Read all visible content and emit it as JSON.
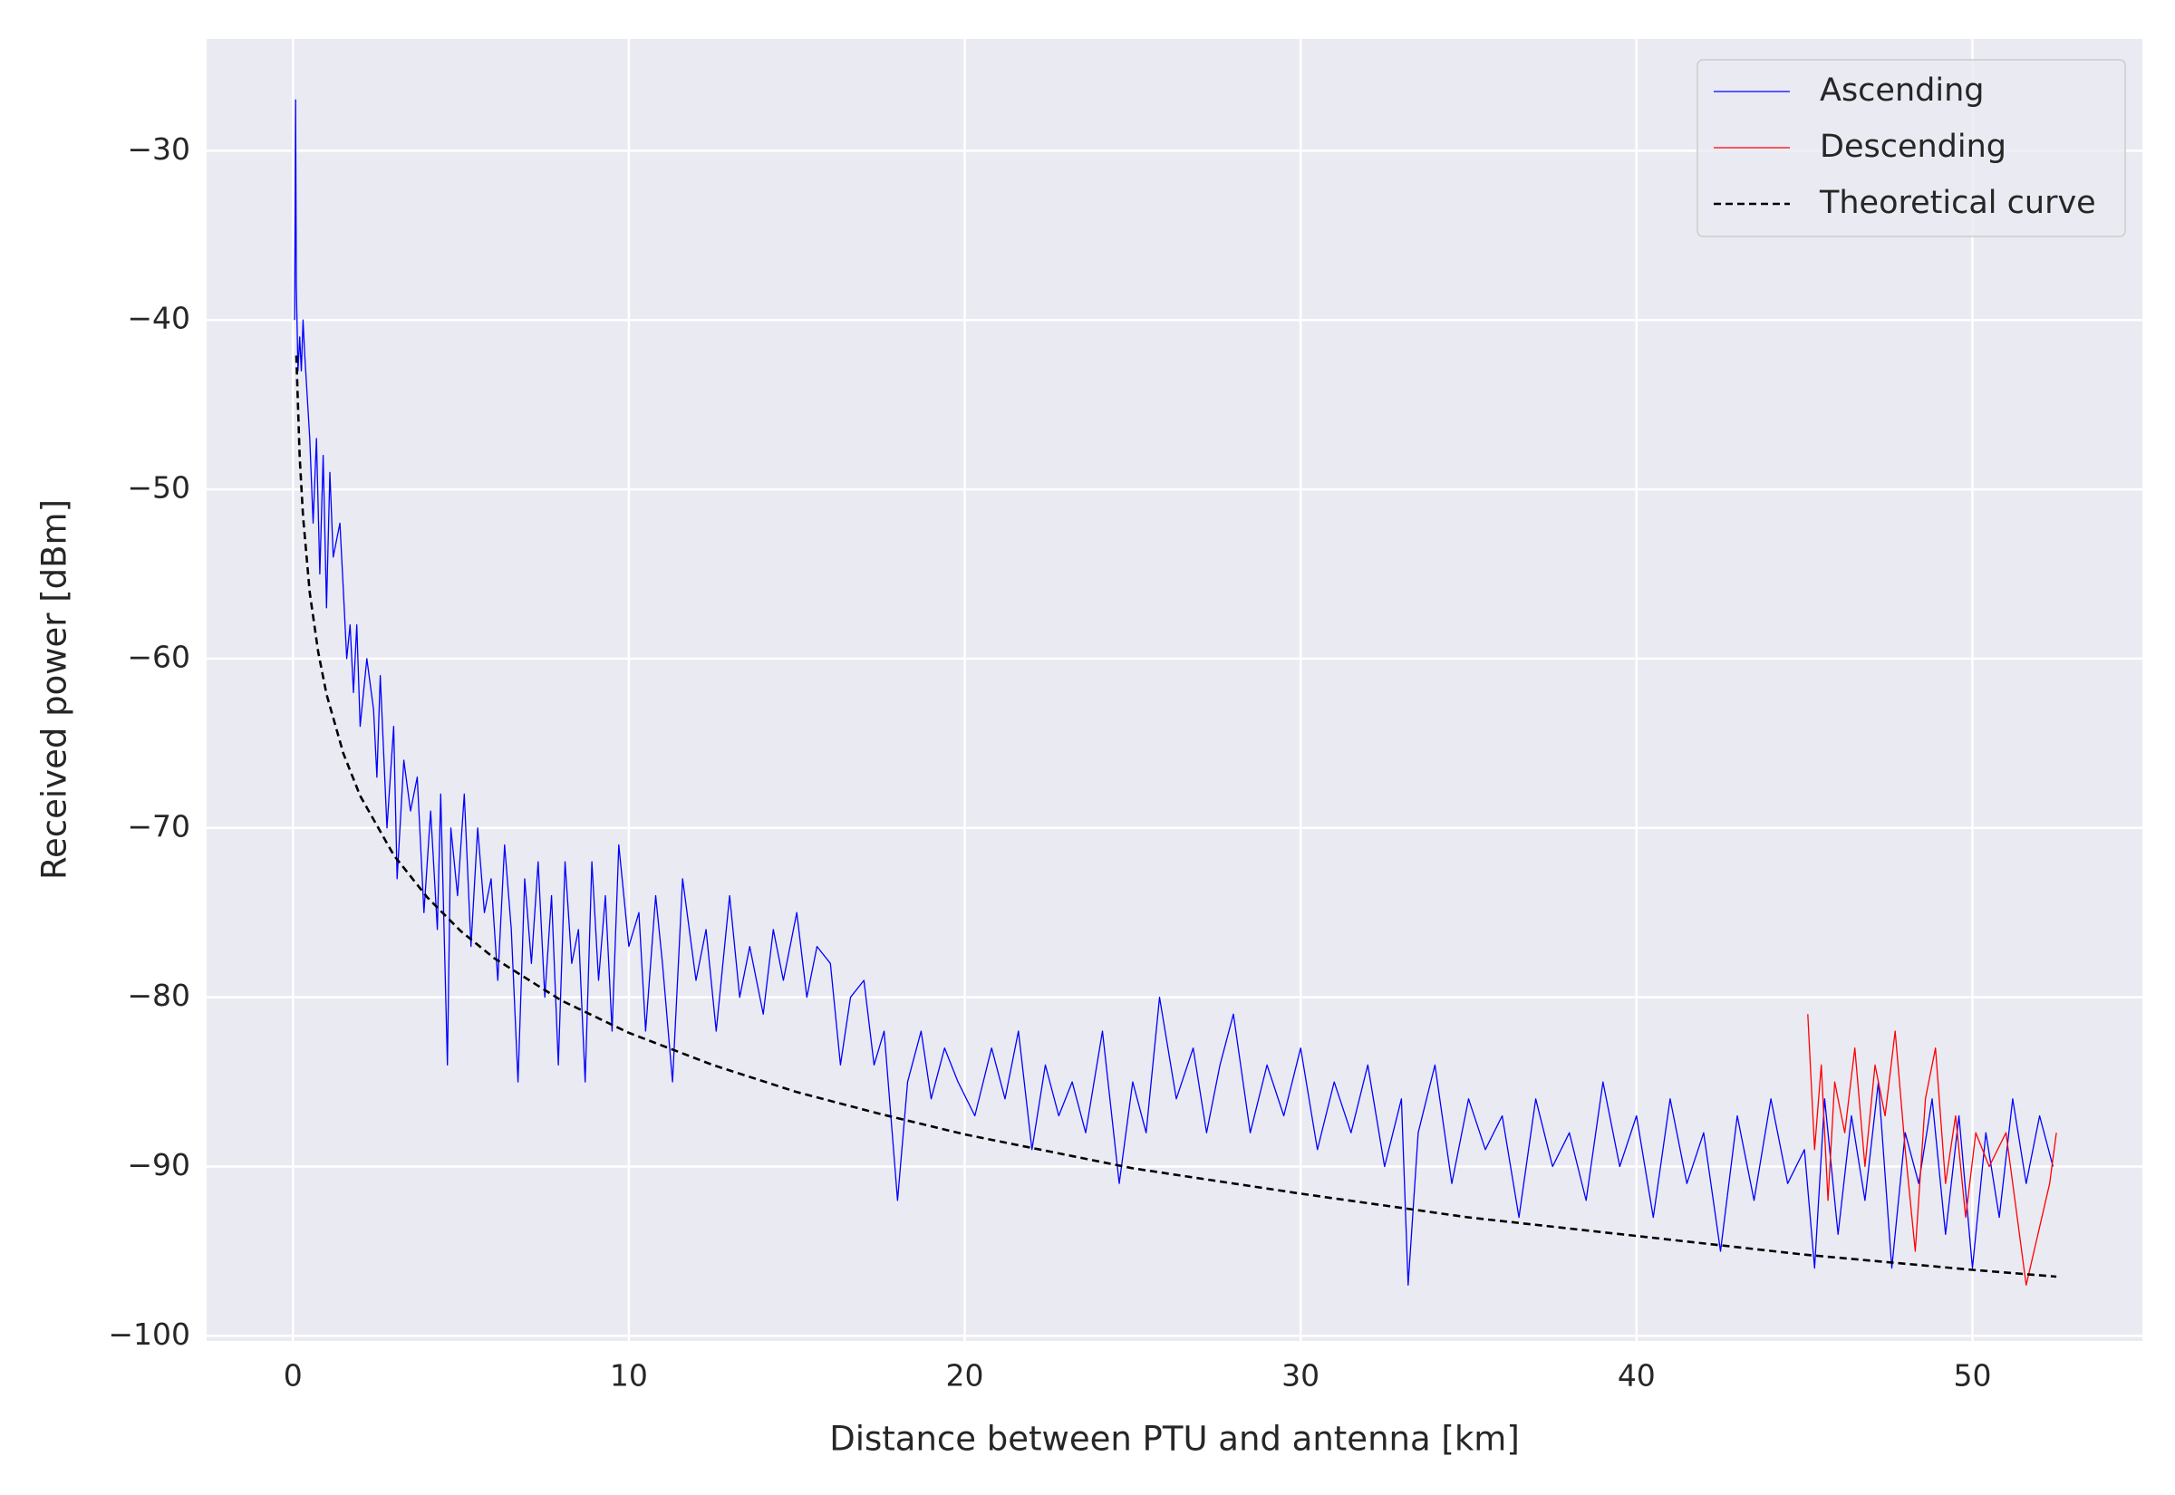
{
  "chart_data": {
    "type": "line",
    "xlabel": "Distance between PTU and antenna [km]",
    "ylabel": "Received power [dBm]",
    "xlim": [
      -2.57,
      55.06
    ],
    "ylim": [
      -100.3,
      -23.4
    ],
    "xticks": [
      0,
      10,
      20,
      30,
      40,
      50
    ],
    "yticks": [
      {
        "value": -30,
        "label": "−30"
      },
      {
        "value": -40,
        "label": "−40"
      },
      {
        "value": -50,
        "label": "−50"
      },
      {
        "value": -60,
        "label": "−60"
      },
      {
        "value": -70,
        "label": "−70"
      },
      {
        "value": -80,
        "label": "−80"
      },
      {
        "value": -90,
        "label": "−90"
      },
      {
        "value": -100,
        "label": "−100"
      }
    ],
    "grid": true,
    "legend": "upper right",
    "series": [
      {
        "name": "Ascending",
        "color": "#0000ff",
        "linestyle": "solid",
        "x": [
          0.05,
          0.08,
          0.1,
          0.15,
          0.2,
          0.25,
          0.3,
          0.35,
          0.5,
          0.6,
          0.7,
          0.8,
          0.9,
          1.0,
          1.1,
          1.2,
          1.4,
          1.5,
          1.6,
          1.7,
          1.8,
          1.9,
          2.0,
          2.2,
          2.4,
          2.5,
          2.6,
          2.8,
          3.0,
          3.1,
          3.3,
          3.5,
          3.7,
          3.9,
          4.1,
          4.3,
          4.4,
          4.6,
          4.7,
          4.9,
          5.1,
          5.3,
          5.5,
          5.7,
          5.9,
          6.1,
          6.3,
          6.5,
          6.7,
          6.9,
          7.1,
          7.3,
          7.5,
          7.7,
          7.9,
          8.1,
          8.3,
          8.5,
          8.7,
          8.9,
          9.1,
          9.3,
          9.5,
          9.7,
          10.0,
          10.3,
          10.5,
          10.8,
          11.0,
          11.3,
          11.6,
          12.0,
          12.3,
          12.6,
          13.0,
          13.3,
          13.6,
          14.0,
          14.3,
          14.6,
          15.0,
          15.3,
          15.6,
          16.0,
          16.3,
          16.6,
          17.0,
          17.3,
          17.6,
          18.0,
          18.3,
          18.7,
          19.0,
          19.4,
          19.8,
          20.3,
          20.8,
          21.2,
          21.6,
          22.0,
          22.4,
          22.8,
          23.2,
          23.6,
          24.1,
          24.6,
          25.0,
          25.4,
          25.8,
          26.3,
          26.8,
          27.2,
          27.6,
          28.0,
          28.5,
          29.0,
          29.5,
          30.0,
          30.5,
          31.0,
          31.5,
          32.0,
          32.5,
          33.0,
          33.2,
          33.5,
          34.0,
          34.5,
          35.0,
          35.5,
          36.0,
          36.5,
          37.0,
          37.5,
          38.0,
          38.5,
          39.0,
          39.5,
          40.0,
          40.5,
          41.0,
          41.5,
          42.0,
          42.5,
          43.0,
          43.5,
          44.0,
          44.5,
          45.0,
          45.3,
          45.6,
          46.0,
          46.4,
          46.8,
          47.2,
          47.6,
          48.0,
          48.4,
          48.8,
          49.2,
          49.6,
          50.0,
          50.4,
          50.8,
          51.2,
          51.6,
          52.0,
          52.4
        ],
        "values": [
          -40,
          -27,
          -38,
          -43,
          -41,
          -43,
          -40,
          -42,
          -47,
          -52,
          -47,
          -55,
          -48,
          -57,
          -49,
          -54,
          -52,
          -56,
          -60,
          -58,
          -62,
          -58,
          -64,
          -60,
          -63,
          -67,
          -61,
          -70,
          -64,
          -73,
          -66,
          -69,
          -67,
          -75,
          -69,
          -76,
          -68,
          -84,
          -70,
          -74,
          -68,
          -77,
          -70,
          -75,
          -73,
          -79,
          -71,
          -76,
          -85,
          -73,
          -78,
          -72,
          -80,
          -74,
          -84,
          -72,
          -78,
          -76,
          -85,
          -72,
          -79,
          -74,
          -82,
          -71,
          -77,
          -75,
          -82,
          -74,
          -78,
          -85,
          -73,
          -79,
          -76,
          -82,
          -74,
          -80,
          -77,
          -81,
          -76,
          -79,
          -75,
          -80,
          -77,
          -78,
          -84,
          -80,
          -79,
          -84,
          -82,
          -92,
          -85,
          -82,
          -86,
          -83,
          -85,
          -87,
          -83,
          -86,
          -82,
          -89,
          -84,
          -87,
          -85,
          -88,
          -82,
          -91,
          -85,
          -88,
          -80,
          -86,
          -83,
          -88,
          -84,
          -81,
          -88,
          -84,
          -87,
          -83,
          -89,
          -85,
          -88,
          -84,
          -90,
          -86,
          -97,
          -88,
          -84,
          -91,
          -86,
          -89,
          -87,
          -93,
          -86,
          -90,
          -88,
          -92,
          -85,
          -90,
          -87,
          -93,
          -86,
          -91,
          -88,
          -95,
          -87,
          -92,
          -86,
          -91,
          -89,
          -96,
          -86,
          -94,
          -87,
          -92,
          -85,
          -96,
          -88,
          -91,
          -86,
          -94,
          -87,
          -96,
          -88,
          -93,
          -86,
          -91,
          -87,
          -90
        ]
      },
      {
        "name": "Descending",
        "color": "#ff0000",
        "linestyle": "solid",
        "x": [
          45.1,
          45.3,
          45.5,
          45.7,
          45.9,
          46.2,
          46.5,
          46.8,
          47.1,
          47.4,
          47.7,
          48.0,
          48.3,
          48.6,
          48.9,
          49.2,
          49.5,
          49.8,
          50.1,
          50.5,
          51.0,
          51.6,
          52.3,
          52.5
        ],
        "values": [
          -81,
          -89,
          -84,
          -92,
          -85,
          -88,
          -83,
          -90,
          -84,
          -87,
          -82,
          -89,
          -95,
          -86,
          -83,
          -91,
          -87,
          -93,
          -88,
          -90,
          -88,
          -97,
          -91,
          -88
        ]
      },
      {
        "name": "Theoretical curve",
        "color": "#000000",
        "linestyle": "dashed",
        "x": [
          0.1,
          0.2,
          0.3,
          0.5,
          0.75,
          1,
          1.5,
          2,
          3,
          4,
          5,
          6,
          8,
          10,
          12.5,
          15,
          17.5,
          20,
          25,
          30,
          35,
          40,
          45,
          50,
          52.5
        ],
        "values": [
          -42.1,
          -48.1,
          -51.6,
          -56.1,
          -59.6,
          -62.1,
          -65.6,
          -68.1,
          -71.6,
          -74.1,
          -76.1,
          -77.7,
          -80.2,
          -82.1,
          -84.0,
          -85.6,
          -86.9,
          -88.1,
          -90.1,
          -91.6,
          -93.0,
          -94.1,
          -95.2,
          -96.1,
          -96.5
        ]
      }
    ]
  }
}
